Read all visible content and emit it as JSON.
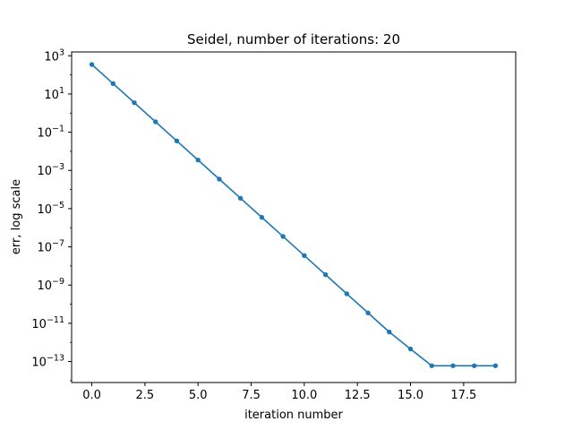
{
  "chart_data": {
    "type": "line",
    "title": "Seidel, number of iterations: 20",
    "xlabel": "iteration number",
    "ylabel": "err, log scale",
    "xlim": [
      -0.95,
      19.95
    ],
    "ylim_log10": [
      -14.1,
      3.2
    ],
    "yscale": "log",
    "grid": false,
    "x_ticks": [
      0.0,
      2.5,
      5.0,
      7.5,
      10.0,
      12.5,
      15.0,
      17.5
    ],
    "x_tick_labels": [
      "0.0",
      "2.5",
      "5.0",
      "7.5",
      "10.0",
      "12.5",
      "15.0",
      "17.5"
    ],
    "y_tick_exponents": [
      3,
      1,
      -1,
      -3,
      -5,
      -7,
      -9,
      -11,
      -13
    ],
    "y_tick_base": "10",
    "color": "#1f77b4",
    "series": [
      {
        "x": [
          0,
          1,
          2,
          3,
          4,
          5,
          6,
          7,
          8,
          9,
          10,
          11,
          12,
          13,
          14,
          15,
          16,
          17,
          18,
          19
        ],
        "y": [
          350,
          35,
          3.5,
          0.35,
          0.035,
          0.0035,
          0.00035,
          3.5e-05,
          3.5e-06,
          3.5e-07,
          3.5e-08,
          3.5e-09,
          3.5e-10,
          3.5e-11,
          3.5e-12,
          4.5e-13,
          6e-14,
          6e-14,
          6e-14,
          6e-14
        ]
      }
    ]
  }
}
